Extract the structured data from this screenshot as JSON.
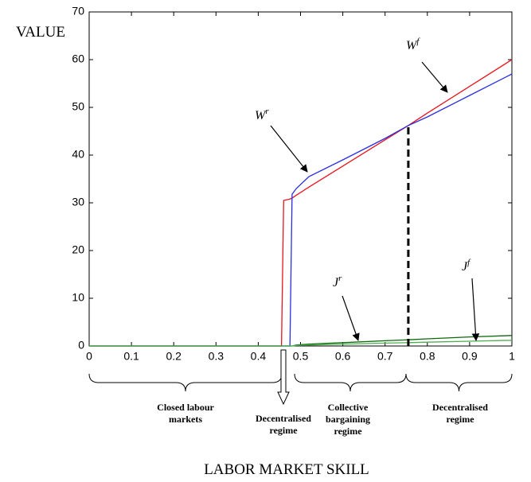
{
  "chart_data": {
    "type": "line",
    "ylabel": "VALUE",
    "xlabel": "LABOR MARKET SKILL",
    "x": [
      0,
      0.455,
      0.46,
      0.475,
      0.48,
      0.49,
      0.52,
      0.6,
      0.7,
      0.755,
      0.8,
      0.9,
      1
    ],
    "series": [
      {
        "name": "Wf",
        "color": "#e8141e",
        "values": [
          0,
          0,
          30.5,
          30.8,
          31,
          31.6,
          33.3,
          37.7,
          43.2,
          46.2,
          48.8,
          54.4,
          60
        ]
      },
      {
        "name": "Wr",
        "color": "#2a2ee0",
        "values": [
          0,
          0,
          0,
          0,
          31.8,
          33,
          35.5,
          39,
          43.5,
          46.2,
          48,
          52.5,
          57
        ]
      },
      {
        "name": "Jf",
        "color": "#0a6a0a",
        "values": [
          0,
          0,
          0,
          0,
          0,
          0.2,
          0.4,
          0.7,
          1.1,
          1.3,
          1.5,
          1.9,
          2.2
        ]
      },
      {
        "name": "Jr",
        "color": "#4caf50",
        "values": [
          0,
          0,
          0,
          0,
          0,
          0.1,
          0.2,
          0.4,
          0.6,
          0.7,
          0.8,
          1.0,
          1.2
        ]
      }
    ],
    "annotations": [
      {
        "base": "W",
        "sup": "r"
      },
      {
        "base": "W",
        "sup": "f"
      },
      {
        "base": "J",
        "sup": "r"
      },
      {
        "base": "J",
        "sup": "f"
      }
    ],
    "regimes": [
      [
        "Closed labour",
        "markets"
      ],
      [
        "Decentralised",
        "regime"
      ],
      [
        "Collective",
        "bargaining",
        "regime"
      ],
      [
        "Decentralised",
        "regime"
      ]
    ],
    "xlim": [
      0,
      1
    ],
    "ylim": [
      0,
      70
    ],
    "xticks": [
      0,
      0.1,
      0.2,
      0.3,
      0.4,
      0.5,
      0.6,
      0.7,
      0.8,
      0.9,
      1
    ],
    "yticks": [
      0,
      10,
      20,
      30,
      40,
      50,
      60,
      70
    ],
    "grid": false
  }
}
